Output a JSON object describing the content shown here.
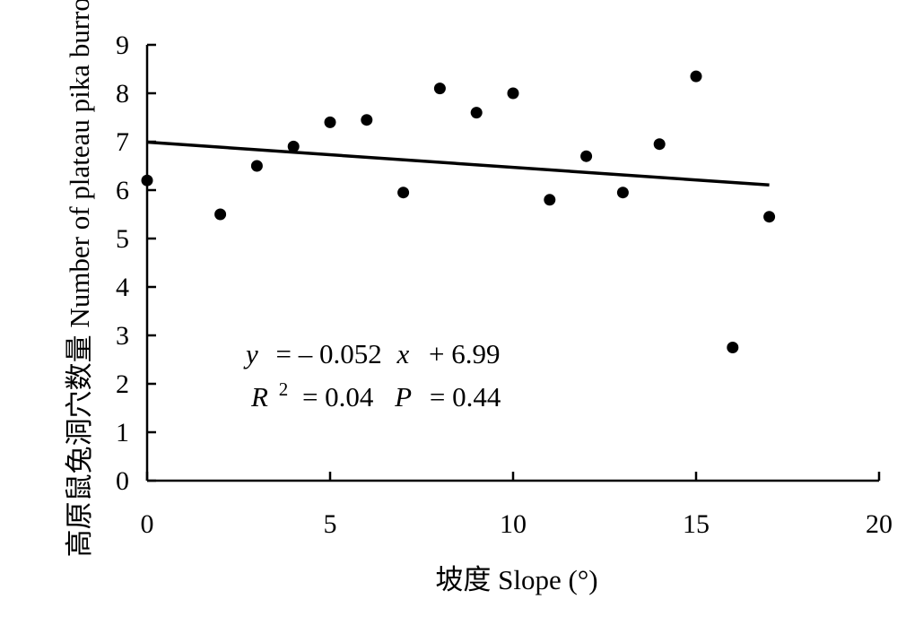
{
  "chart_data": {
    "type": "scatter",
    "title": "",
    "xlabel": "坡度 Slope (°)",
    "ylabel": "高原鼠兔洞穴数量 Number of plateau pika burrows",
    "xlim": [
      0,
      20
    ],
    "ylim": [
      0,
      9
    ],
    "x_ticks": [
      "0",
      "5",
      "10",
      "15",
      "20"
    ],
    "y_ticks": [
      "0",
      "1",
      "2",
      "3",
      "4",
      "5",
      "6",
      "7",
      "8",
      "9"
    ],
    "grid": false,
    "legend": "none",
    "series": [
      {
        "points": [
          {
            "x": 0,
            "y": 6.2
          },
          {
            "x": 2,
            "y": 5.5
          },
          {
            "x": 3,
            "y": 6.5
          },
          {
            "x": 4,
            "y": 6.9
          },
          {
            "x": 5,
            "y": 7.4
          },
          {
            "x": 6,
            "y": 7.45
          },
          {
            "x": 7,
            "y": 5.95
          },
          {
            "x": 8,
            "y": 8.1
          },
          {
            "x": 9,
            "y": 7.6
          },
          {
            "x": 10,
            "y": 8.0
          },
          {
            "x": 11,
            "y": 5.8
          },
          {
            "x": 12,
            "y": 6.7
          },
          {
            "x": 13,
            "y": 5.95
          },
          {
            "x": 14,
            "y": 6.95
          },
          {
            "x": 15,
            "y": 8.35
          },
          {
            "x": 16,
            "y": 2.75
          },
          {
            "x": 17,
            "y": 5.45
          }
        ]
      }
    ],
    "trendline": {
      "slope": -0.052,
      "intercept": 6.99,
      "x_range": [
        0,
        17
      ]
    },
    "annotations": {
      "equation": {
        "y": "y",
        "eq": "= – 0.052",
        "x": "x",
        "rest": "+ 6.99"
      },
      "stats": {
        "r": "R",
        "sup": "2",
        "r_val": "= 0.04",
        "p": "P",
        "p_val": "= 0.44"
      }
    },
    "colors": {
      "points": "#000000",
      "line": "#000000",
      "axis": "#000000"
    }
  }
}
